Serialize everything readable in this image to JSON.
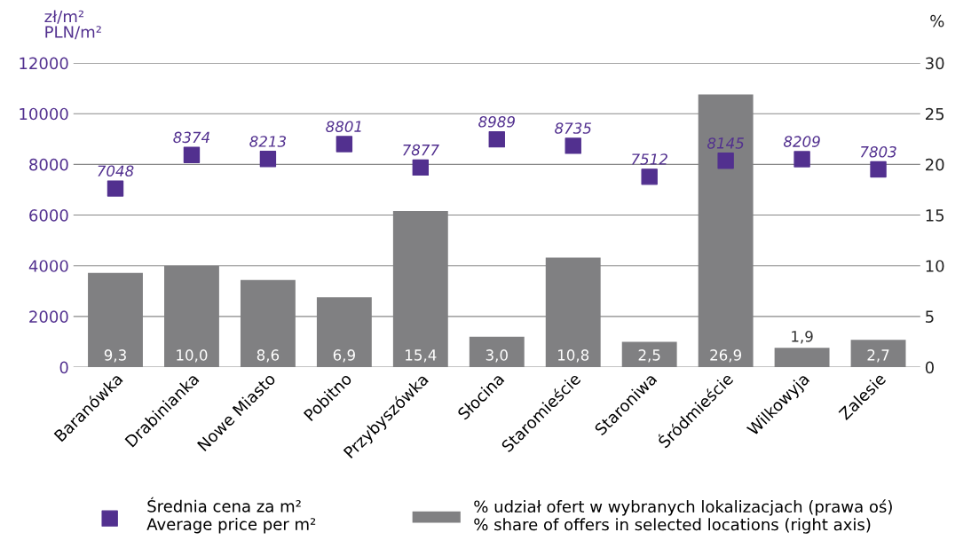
{
  "chart_data": {
    "type": "bar",
    "ylabel": "zł/m²\nPLN/m²",
    "y2label": "%",
    "categories": [
      "Baranówka",
      "Drabinianka",
      "Nowe Miasto",
      "Pobitno",
      "Przybyszówka",
      "Słocina",
      "Staromieście",
      "Staroniwa",
      "Śródmieście",
      "Wilkowyja",
      "Zalesie"
    ],
    "series": [
      {
        "name": "% udział ofert w wybranych lokalizacjach (prawa oś)\n% share of offers in selected locations (right axis)",
        "axis": "y2",
        "color": "#808082",
        "values": [
          9.3,
          10.0,
          8.6,
          6.9,
          15.4,
          3.0,
          10.8,
          2.5,
          26.9,
          1.9,
          2.7
        ],
        "value_labels": [
          "9,3",
          "10,0",
          "8,6",
          "6,9",
          "15,4",
          "3,0",
          "10,8",
          "2,5",
          "26,9",
          "1,9",
          "2,7"
        ]
      },
      {
        "name": "Średnia cena za m²\nAverage price per m²",
        "type": "scatter",
        "color": "#52308f",
        "values": [
          7048,
          8374,
          8213,
          8801,
          7877,
          8989,
          8735,
          7512,
          8145,
          8209,
          7803
        ],
        "value_labels": [
          "7048",
          "8374",
          "8213",
          "8801",
          "7877",
          "8989",
          "8735",
          "7512",
          "8145",
          "8209",
          "7803"
        ]
      }
    ],
    "ylim": [
      0,
      12000
    ],
    "yticks": [
      0,
      2000,
      4000,
      6000,
      8000,
      10000,
      12000
    ],
    "y2lim": [
      0,
      30
    ],
    "y2ticks": [
      0,
      5,
      10,
      15,
      20,
      25,
      30
    ],
    "grid": "y",
    "legend": "bottom",
    "marker": "square"
  }
}
